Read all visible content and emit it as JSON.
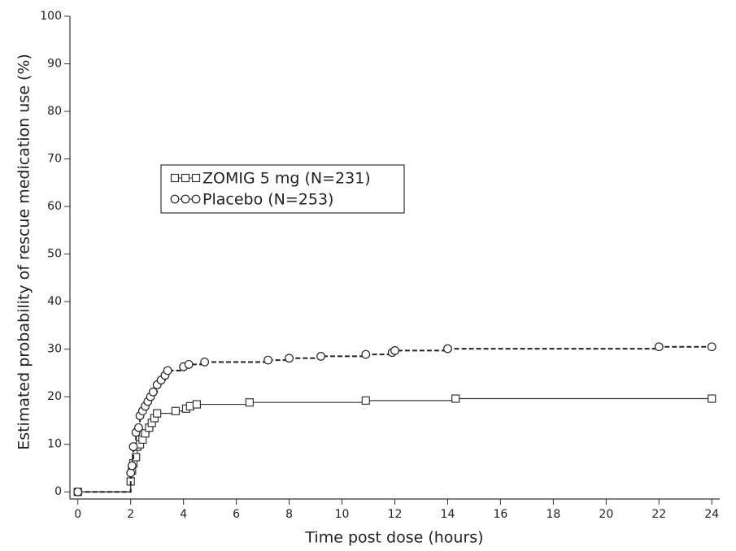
{
  "chart_data": {
    "type": "step",
    "x_label": "Time post dose (hours)",
    "y_label": "Estimated probability of rescue medication use (%)",
    "xlim": [
      -0.3,
      24.3
    ],
    "ylim": [
      -1.5,
      100
    ],
    "xticks": [
      0,
      2,
      4,
      6,
      8,
      10,
      12,
      14,
      16,
      18,
      20,
      22,
      24
    ],
    "yticks": [
      0,
      10,
      20,
      30,
      40,
      50,
      60,
      70,
      80,
      90,
      100
    ],
    "legend": "upper left",
    "series": [
      {
        "name": "ZOMIG 5 mg (N=231)",
        "color": "#333333",
        "marker": "square",
        "linestyle": "solid",
        "x": [
          0,
          2,
          2.05,
          2.1,
          2.2,
          2.25,
          2.35,
          2.45,
          2.55,
          2.7,
          2.8,
          2.9,
          3.0,
          3.7,
          4.1,
          4.25,
          4.5,
          6.5,
          10.9,
          14.3,
          24
        ],
        "values": [
          0,
          2.2,
          4.5,
          6,
          7.3,
          9.5,
          10,
          11,
          12.3,
          13.5,
          14.5,
          15.5,
          16.5,
          17,
          17.5,
          18,
          18.4,
          18.8,
          19.2,
          19.6,
          19.6
        ]
      },
      {
        "name": "Placebo (N=253)",
        "color": "#222222",
        "marker": "circle",
        "linestyle": "dashed",
        "x": [
          0,
          2.0,
          2.05,
          2.1,
          2.2,
          2.3,
          2.35,
          2.45,
          2.55,
          2.65,
          2.75,
          2.85,
          3.0,
          3.15,
          3.3,
          3.4,
          4.0,
          4.2,
          4.8,
          7.2,
          8.0,
          9.2,
          10.9,
          11.9,
          12.0,
          14.0,
          22.0,
          24.0
        ],
        "values": [
          0,
          4,
          5.5,
          9.5,
          12.5,
          13.5,
          16,
          17,
          18,
          19,
          20,
          21,
          22.5,
          23.5,
          24.5,
          25.5,
          26.3,
          26.8,
          27.3,
          27.7,
          28.1,
          28.5,
          28.9,
          29.3,
          29.7,
          30.1,
          30.5,
          30.5
        ]
      }
    ]
  }
}
